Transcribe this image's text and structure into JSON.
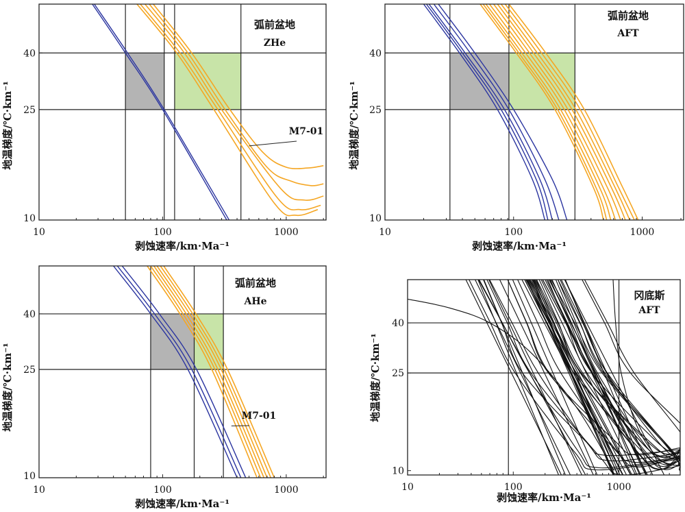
{
  "chart_data": [
    {
      "type": "line",
      "panel_labels": [
        "弧前盆地",
        "ZHe"
      ],
      "xlabel": "剥蚀速率/km·Ma⁻¹",
      "ylabel": "地温梯度/℃·km⁻¹",
      "xscale": "log",
      "yscale": "log",
      "xlim": [
        10,
        2100
      ],
      "ylim": [
        10,
        60
      ],
      "xticks": [
        "10",
        "100",
        "1000"
      ],
      "yticks": [
        "10",
        "25",
        "40"
      ],
      "ref_lines_x": [
        50,
        103,
        125,
        430
      ],
      "ref_lines_y": [
        25,
        40
      ],
      "boxes": [
        {
          "color": "#b4b4b4",
          "x": [
            50,
            103
          ],
          "y": [
            25,
            40
          ]
        },
        {
          "color": "#c8e4a8",
          "x": [
            125,
            430
          ],
          "y": [
            25,
            40
          ]
        }
      ],
      "annotation": {
        "text": "M7-01",
        "points_to": [
          500,
          18.5
        ]
      },
      "colors": {
        "blue": "#2b35a0",
        "orange": "#f5a623"
      },
      "series": [
        {
          "color": "blue",
          "points": [
            [
              27,
              60
            ],
            [
              50,
              40
            ],
            [
              100,
              25
            ],
            [
              330,
              10
            ]
          ]
        },
        {
          "color": "blue",
          "points": [
            [
              28,
              60
            ],
            [
              52,
              40
            ],
            [
              103,
              25
            ],
            [
              345,
              10
            ]
          ]
        },
        {
          "color": "orange",
          "points": [
            [
              62,
              60
            ],
            [
              130,
              40
            ],
            [
              260,
              25
            ],
            [
              800,
              11.5
            ],
            [
              1200,
              10.4
            ],
            [
              1800,
              10.9
            ]
          ]
        },
        {
          "color": "orange",
          "points": [
            [
              66,
              60
            ],
            [
              138,
              40
            ],
            [
              280,
              25
            ],
            [
              850,
              12
            ],
            [
              1300,
              10.9
            ],
            [
              1900,
              11.3
            ]
          ]
        },
        {
          "color": "orange",
          "points": [
            [
              72,
              60
            ],
            [
              150,
              40
            ],
            [
              300,
              25
            ],
            [
              900,
              13
            ],
            [
              1400,
              11.8
            ],
            [
              2000,
              12.2
            ]
          ]
        },
        {
          "color": "orange",
          "points": [
            [
              78,
              60
            ],
            [
              160,
              40
            ],
            [
              320,
              25
            ],
            [
              700,
              15.5
            ],
            [
              1100,
              13.8
            ],
            [
              1600,
              13.3
            ],
            [
              2000,
              13.5
            ]
          ]
        },
        {
          "color": "orange",
          "points": [
            [
              84,
              60
            ],
            [
              172,
              40
            ],
            [
              350,
              25
            ],
            [
              650,
              17.5
            ],
            [
              1000,
              15.5
            ],
            [
              1500,
              15.4
            ],
            [
              2000,
              15.7
            ]
          ]
        }
      ]
    },
    {
      "type": "line",
      "panel_labels": [
        "弧前盆地",
        "AFT"
      ],
      "xlabel": "剥蚀速率/km·Ma⁻¹",
      "ylabel": "地温梯度/℃·km⁻¹",
      "xscale": "log",
      "yscale": "log",
      "xlim": [
        10,
        2100
      ],
      "ylim": [
        10,
        60
      ],
      "xticks": [
        "10",
        "100",
        "1000"
      ],
      "yticks": [
        "10",
        "25",
        "40"
      ],
      "ref_lines_x": [
        32,
        92,
        300
      ],
      "ref_lines_y": [
        25,
        40
      ],
      "boxes": [
        {
          "color": "#b4b4b4",
          "x": [
            32,
            92
          ],
          "y": [
            25,
            40
          ]
        },
        {
          "color": "#c8e4a8",
          "x": [
            92,
            300
          ],
          "y": [
            25,
            40
          ]
        }
      ],
      "colors": {
        "blue": "#2b35a0",
        "orange": "#f5a623"
      },
      "series": [
        {
          "color": "blue",
          "points": [
            [
              20,
              60
            ],
            [
              38,
              40
            ],
            [
              75,
              25
            ],
            [
              140,
              14
            ],
            [
              175,
              10
            ]
          ]
        },
        {
          "color": "blue",
          "points": [
            [
              21,
              60
            ],
            [
              40,
              40
            ],
            [
              80,
              25
            ],
            [
              150,
              14
            ],
            [
              185,
              10
            ]
          ]
        },
        {
          "color": "blue",
          "points": [
            [
              22,
              60
            ],
            [
              42,
              40
            ],
            [
              85,
              25
            ],
            [
              160,
              14
            ],
            [
              200,
              10
            ]
          ]
        },
        {
          "color": "blue",
          "points": [
            [
              24,
              60
            ],
            [
              46,
              40
            ],
            [
              92,
              25
            ],
            [
              175,
              14
            ],
            [
              225,
              10
            ]
          ]
        },
        {
          "color": "blue",
          "points": [
            [
              26,
              60
            ],
            [
              50,
              40
            ],
            [
              100,
              25
            ],
            [
              200,
              14
            ],
            [
              260,
              10
            ]
          ]
        },
        {
          "color": "orange",
          "points": [
            [
              55,
              60
            ],
            [
              105,
              40
            ],
            [
              210,
              25
            ],
            [
              420,
              13
            ],
            [
              500,
              10
            ]
          ]
        },
        {
          "color": "orange",
          "points": [
            [
              58,
              60
            ],
            [
              110,
              40
            ],
            [
              220,
              25
            ],
            [
              440,
              13
            ],
            [
              530,
              10
            ]
          ]
        },
        {
          "color": "orange",
          "points": [
            [
              61,
              60
            ],
            [
              116,
              40
            ],
            [
              232,
              25
            ],
            [
              470,
              13
            ],
            [
              570,
              10
            ]
          ]
        },
        {
          "color": "orange",
          "points": [
            [
              65,
              60
            ],
            [
              124,
              40
            ],
            [
              248,
              25
            ],
            [
              500,
              13
            ],
            [
              620,
              10
            ]
          ]
        },
        {
          "color": "orange",
          "points": [
            [
              70,
              60
            ],
            [
              133,
              40
            ],
            [
              265,
              25
            ],
            [
              540,
              13
            ],
            [
              680,
              10
            ]
          ]
        },
        {
          "color": "orange",
          "points": [
            [
              75,
              60
            ],
            [
              143,
              40
            ],
            [
              285,
              25
            ],
            [
              580,
              13
            ],
            [
              740,
              10
            ]
          ]
        },
        {
          "color": "orange",
          "points": [
            [
              80,
              60
            ],
            [
              153,
              40
            ],
            [
              305,
              25
            ],
            [
              620,
              13
            ],
            [
              800,
              10
            ]
          ]
        },
        {
          "color": "orange",
          "points": [
            [
              86,
              60
            ],
            [
              165,
              40
            ],
            [
              330,
              25
            ],
            [
              660,
              13
            ],
            [
              870,
              10
            ]
          ]
        },
        {
          "color": "orange",
          "points": [
            [
              92,
              60
            ],
            [
              178,
              40
            ],
            [
              355,
              25
            ],
            [
              700,
              13.2
            ],
            [
              930,
              10
            ]
          ]
        }
      ]
    },
    {
      "type": "line",
      "panel_labels": [
        "弧前盆地",
        "AHe"
      ],
      "xlabel": "剥蚀速率/km·Ma⁻¹",
      "ylabel": "地温梯度/℃·km⁻¹",
      "xscale": "log",
      "yscale": "log",
      "xlim": [
        10,
        2100
      ],
      "ylim": [
        10,
        60
      ],
      "xticks": [
        "10",
        "100",
        "1000"
      ],
      "yticks": [
        "10",
        "25",
        "40"
      ],
      "ref_lines_x": [
        80,
        180,
        310
      ],
      "ref_lines_y": [
        25,
        40
      ],
      "boxes": [
        {
          "color": "#b4b4b4",
          "x": [
            80,
            180
          ],
          "y": [
            25,
            40
          ]
        },
        {
          "color": "#c8e4a8",
          "x": [
            180,
            310
          ],
          "y": [
            25,
            40
          ]
        }
      ],
      "annotation": {
        "text": "M7-01",
        "points_to": [
          360,
          15.5
        ]
      },
      "colors": {
        "blue": "#2b35a0",
        "orange": "#f5a623"
      },
      "series": [
        {
          "color": "blue",
          "points": [
            [
              40,
              60
            ],
            [
              80,
              40
            ],
            [
              160,
              25
            ],
            [
              400,
              10
            ]
          ]
        },
        {
          "color": "blue",
          "points": [
            [
              43,
              60
            ],
            [
              86,
              40
            ],
            [
              172,
              25
            ],
            [
              430,
              10
            ]
          ]
        },
        {
          "color": "blue",
          "points": [
            [
              47,
              60
            ],
            [
              94,
              40
            ],
            [
              188,
              25
            ],
            [
              470,
              10
            ]
          ]
        },
        {
          "color": "orange",
          "points": [
            [
              75,
              60
            ],
            [
              138,
              40
            ],
            [
              250,
              25
            ],
            [
              580,
              10
            ]
          ]
        },
        {
          "color": "orange",
          "points": [
            [
              80,
              60
            ],
            [
              146,
              40
            ],
            [
              265,
              25
            ],
            [
              620,
              10
            ]
          ]
        },
        {
          "color": "orange",
          "points": [
            [
              85,
              60
            ],
            [
              155,
              40
            ],
            [
              280,
              25
            ],
            [
              660,
              10
            ]
          ]
        },
        {
          "color": "orange",
          "points": [
            [
              90,
              60
            ],
            [
              165,
              40
            ],
            [
              298,
              25
            ],
            [
              700,
              10
            ]
          ]
        },
        {
          "color": "orange",
          "points": [
            [
              96,
              60
            ],
            [
              175,
              40
            ],
            [
              315,
              25
            ],
            [
              750,
              10
            ]
          ]
        },
        {
          "color": "orange",
          "points": [
            [
              102,
              60
            ],
            [
              186,
              40
            ],
            [
              335,
              25
            ],
            [
              800,
              10
            ]
          ]
        }
      ]
    },
    {
      "type": "line",
      "panel_labels": [
        "冈底斯",
        "AFT"
      ],
      "xlabel": "剥蚀速率/km·Ma⁻¹",
      "ylabel": "地温梯度/℃·km⁻¹",
      "xscale": "log",
      "yscale": "log",
      "xlim": [
        10,
        3800
      ],
      "ylim": [
        9.6,
        60
      ],
      "xticks": [
        "10",
        "100",
        "1000"
      ],
      "yticks": [
        "10",
        "25",
        "40"
      ],
      "ref_lines_x": [
        90,
        1000
      ],
      "ref_lines_y": [
        25,
        40
      ],
      "colors": {
        "line": "#111111"
      },
      "series_note": "dense family of about 60 black curves"
    }
  ]
}
